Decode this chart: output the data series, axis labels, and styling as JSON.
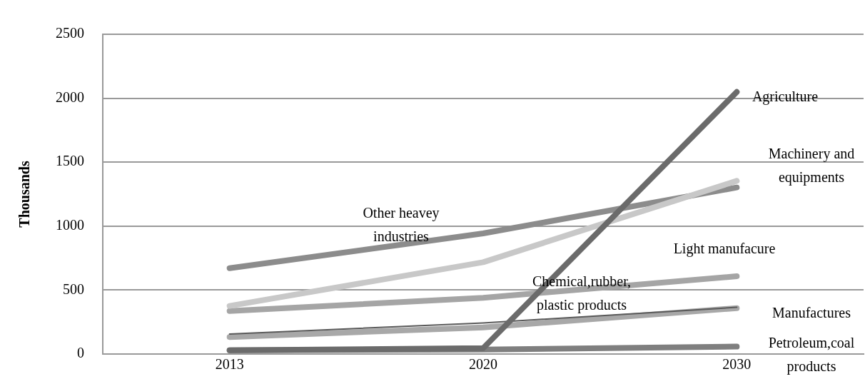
{
  "chart_data": {
    "type": "line",
    "ylabel": "Thousands",
    "categories": [
      "2013",
      "2020",
      "2030"
    ],
    "ylim": [
      0,
      2500
    ],
    "yticks": [
      0,
      500,
      1000,
      1500,
      2000,
      2500
    ],
    "grid": "y",
    "legend": false,
    "marker": "none",
    "line_style": "solid",
    "series": [
      {
        "name": "Agriculture",
        "color": "#6b6b6b",
        "values": [
          29,
          46,
          2049
        ]
      },
      {
        "name": "Machinery and equipments",
        "color": "#c8c8c8",
        "values": [
          376,
          718,
          1354
        ]
      },
      {
        "name": "Other heavey industries",
        "color": "#8c8c8c",
        "values": [
          671,
          943,
          1302
        ]
      },
      {
        "name": "Light manufacure",
        "color": "#a5a5a5",
        "values": [
          336,
          440,
          608
        ]
      },
      {
        "name": "Chemical,rubber,plastic products",
        "color": "#595959",
        "values": [
          156,
          243,
          365
        ]
      },
      {
        "name": "Manufactures",
        "color": "#a8a8a8",
        "values": [
          133,
          208,
          359
        ]
      },
      {
        "name": "Petroleum,coal products",
        "color": "#7f7f7f",
        "values": [
          29,
          35,
          58
        ]
      }
    ]
  }
}
